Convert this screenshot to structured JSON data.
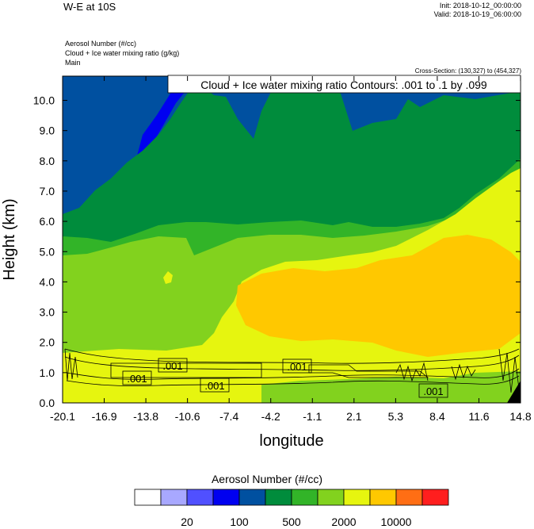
{
  "header": {
    "title": "W-E at 10S",
    "init": "Init: 2018-10-12_00:00:00",
    "valid": "Valid: 2018-10-19_06:00:00",
    "field_lines": [
      "Aerosol Number   (#/cc)",
      "Cloud + Ice water mixing ratio   (g/kg)",
      "Main"
    ],
    "cross_section": "Cross-Section: (130,327) to (454,327)"
  },
  "chart_data": {
    "type": "heatmap",
    "xlabel": "longitude",
    "ylabel": "Height (km)",
    "xlim": [
      -20.1,
      14.8
    ],
    "ylim": [
      0.0,
      10.8
    ],
    "xticks": [
      "-20.1",
      "-16.9",
      "-13.8",
      "-10.6",
      "-7.4",
      "-4.2",
      "-1.1",
      "2.1",
      "5.3",
      "8.4",
      "11.6",
      "14.8"
    ],
    "yticks": [
      "0.0",
      "1.0",
      "2.0",
      "3.0",
      "4.0",
      "5.0",
      "6.0",
      "7.0",
      "8.0",
      "9.0",
      "10.0"
    ],
    "contour_info": "Cloud + Ice water mixing ratio Contours: .001 to .1 by .099",
    "contour_labels": [
      ".001",
      ".001",
      ".001",
      ".001",
      ".001"
    ],
    "colorbar": {
      "title": "Aerosol Number  (#/cc)",
      "colors": [
        "#ffffff",
        "#a8a8ff",
        "#5050ff",
        "#0000f0",
        "#0050a0",
        "#008c3c",
        "#32b428",
        "#82d21e",
        "#e6f50f",
        "#ffc800",
        "#ff6e14",
        "#ff1e1e"
      ],
      "tick_labels": [
        "20",
        "100",
        "500",
        "2000",
        "10000"
      ]
    },
    "regions": [
      {
        "color": "#0050a0",
        "level": "blue",
        "note": "upper troposphere above ~8-10 km, west and central"
      },
      {
        "color": "#0000f0",
        "level": "dark blue",
        "note": "small patch near -12 lon, 8.5-10.8 km"
      },
      {
        "color": "#008c3c",
        "level": "dark green",
        "note": "mid/upper troposphere"
      },
      {
        "color": "#32b428",
        "level": "green",
        "note": "band around 2-6 km"
      },
      {
        "color": "#82d21e",
        "level": "light green",
        "note": "lower troposphere"
      },
      {
        "color": "#e6f50f",
        "level": "yellow",
        "note": "boundary layer and eastern mid levels"
      },
      {
        "color": "#ffc800",
        "level": "orange",
        "note": "core at ~2-5 km, -7 to 14 lon"
      }
    ]
  }
}
